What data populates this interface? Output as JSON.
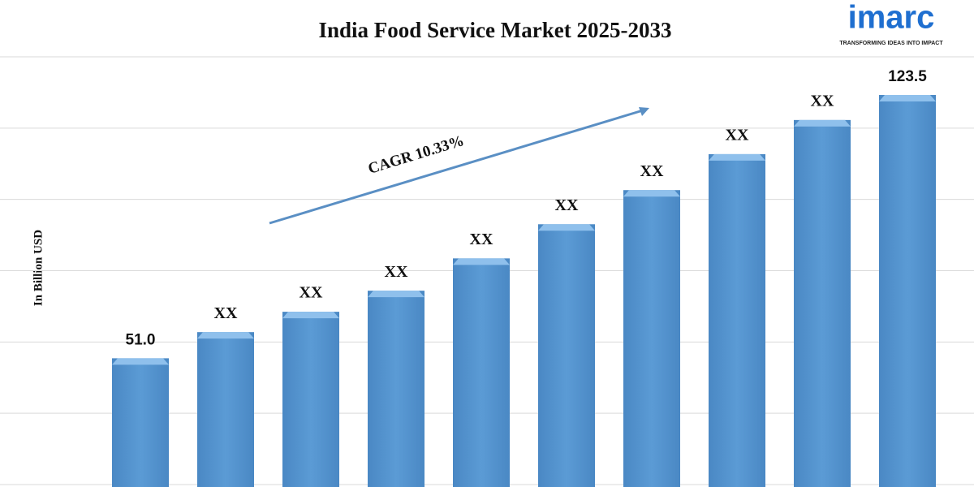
{
  "chart_data": {
    "type": "bar",
    "title": "India Food Service Market 2025-2033",
    "y_label": "In Billion USD",
    "annotation": "CAGR 10.33%",
    "logo": {
      "name": "imarc",
      "tagline": "TRANSFORMING IDEAS INTO IMPACT"
    },
    "values": [
      51.0,
      58.2,
      63.8,
      69.6,
      78.5,
      87.9,
      97.3,
      107.2,
      116.6,
      123.5
    ],
    "value_labels": [
      "51.0",
      "XX",
      "XX",
      "XX",
      "XX",
      "XX",
      "XX",
      "XX",
      "XX",
      "123.5"
    ],
    "color": "#5b9bd5",
    "ylim": [
      16,
      134
    ],
    "grid": true
  }
}
